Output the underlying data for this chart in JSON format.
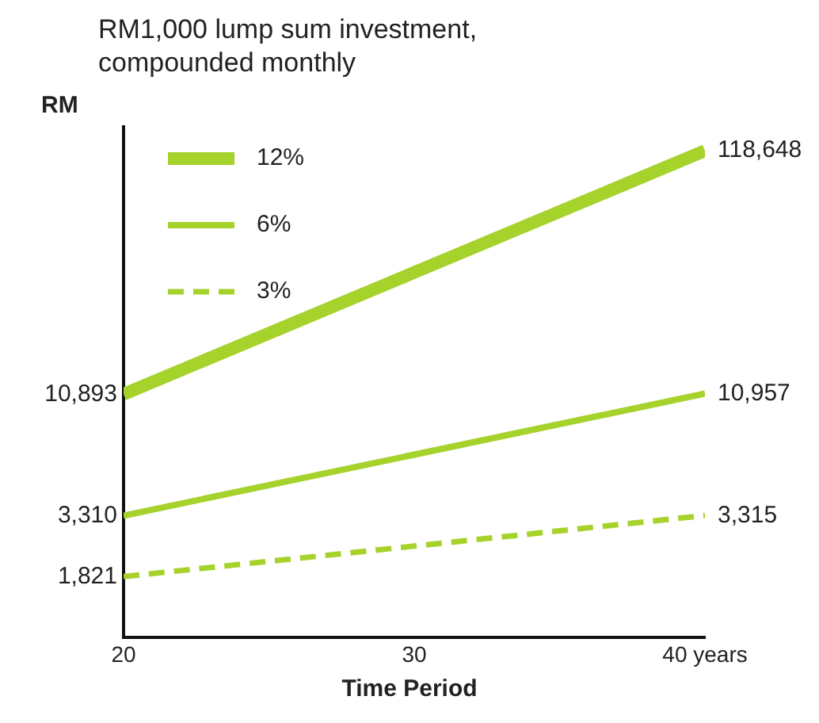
{
  "chart_data": {
    "type": "line",
    "title": "RM1,000 lump sum investment, compounded monthly",
    "xlabel": "Time Period",
    "ylabel": "RM",
    "x": [
      20,
      30,
      40
    ],
    "xlim": [
      20,
      40
    ],
    "xticks": [
      20,
      30,
      {
        "value": 40,
        "label": "40 years"
      }
    ],
    "series": [
      {
        "name": "12%",
        "color": "#a6d22c",
        "values": [
          10893,
          35950,
          118648
        ],
        "value_labels": [
          "10,893",
          null,
          "118,648"
        ],
        "line_style": "solid"
      },
      {
        "name": "6%",
        "color": "#a6d22c",
        "values": [
          3310,
          6022,
          10957
        ],
        "value_labels": [
          "3,310",
          null,
          "10,957"
        ],
        "line_style": "solid"
      },
      {
        "name": "3%",
        "color": "#a6d22c",
        "values": [
          1821,
          2456,
          3315
        ],
        "value_labels": [
          "1,821",
          null,
          "3,315"
        ],
        "line_style": "dashed"
      }
    ],
    "log": true,
    "grid": false,
    "legend": "top left",
    "marker": "none",
    "tick_labels": "x"
  }
}
